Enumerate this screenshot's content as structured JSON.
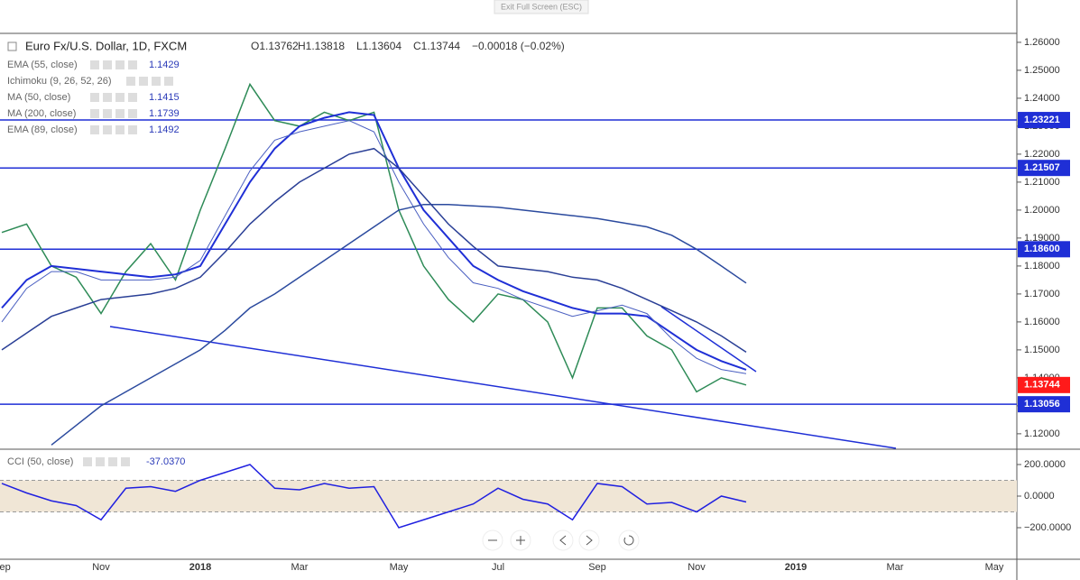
{
  "top_button": "Exit Full Screen (ESC)",
  "legend": {
    "symbol": "Euro Fx/U.S. Dollar, 1D, FXCM",
    "open": "O1.13762",
    "high": "H1.13818",
    "low": "L1.13604",
    "close": "C1.13744",
    "change": "−0.00018 (−0.02%)",
    "indicators": [
      {
        "name": "EMA (55, close)",
        "value": "1.1429"
      },
      {
        "name": "Ichimoku (9, 26, 52, 26)",
        "value": null
      },
      {
        "name": "MA (50, close)",
        "value": "1.1415"
      },
      {
        "name": "MA (200, close)",
        "value": "1.1739"
      },
      {
        "name": "EMA (89, close)",
        "value": "1.1492"
      }
    ]
  },
  "chart_data": [
    {
      "type": "line",
      "categories": [
        "Sep",
        null,
        null,
        null,
        "Nov",
        null,
        null,
        null,
        "2018",
        null,
        null,
        null,
        "Mar",
        null,
        null,
        null,
        "May",
        null,
        null,
        null,
        "Jul",
        null,
        null,
        null,
        "Sep",
        null,
        null,
        null,
        "Nov",
        null,
        null,
        null,
        "2019",
        null,
        null,
        null,
        "Mar",
        null,
        null,
        null,
        "May"
      ],
      "ylim": [
        1.1148,
        1.2632
      ],
      "yticks": [
        {
          "value": 1.12,
          "label": "1.12000"
        },
        {
          "value": 1.13,
          "label": "1.13000"
        },
        {
          "value": 1.14,
          "label": "1.14000"
        },
        {
          "value": 1.15,
          "label": "1.15000"
        },
        {
          "value": 1.16,
          "label": "1.16000"
        },
        {
          "value": 1.17,
          "label": "1.17000"
        },
        {
          "value": 1.18,
          "label": "1.18000"
        },
        {
          "value": 1.19,
          "label": "1.19000"
        },
        {
          "value": 1.2,
          "label": "1.20000"
        },
        {
          "value": 1.21,
          "label": "1.21000"
        },
        {
          "value": 1.22,
          "label": "1.22000"
        },
        {
          "value": 1.23,
          "label": "1.23000"
        },
        {
          "value": 1.24,
          "label": "1.24000"
        },
        {
          "value": 1.25,
          "label": "1.25000"
        },
        {
          "value": 1.26,
          "label": "1.26000"
        }
      ],
      "series": [
        {
          "name": "Euro Fx/U.S. Dollar",
          "color": "#2e8b57",
          "width": 1.5,
          "values": [
            1.192,
            1.195,
            1.18,
            1.176,
            1.163,
            1.178,
            1.188,
            1.175,
            1.2,
            1.222,
            1.245,
            1.232,
            1.23,
            1.235,
            1.232,
            1.235,
            1.2,
            1.18,
            1.168,
            1.16,
            1.17,
            1.168,
            1.16,
            1.14,
            1.165,
            1.165,
            1.155,
            1.15,
            1.135,
            1.14,
            1.13744,
            null,
            null,
            null,
            null,
            null,
            null,
            null,
            null,
            null,
            null
          ]
        },
        {
          "name": "EMA (55, close)",
          "color": "#1f2fd6",
          "width": 2,
          "values": [
            1.165,
            1.175,
            1.18,
            1.179,
            1.178,
            1.177,
            1.176,
            1.177,
            1.18,
            1.195,
            1.21,
            1.222,
            1.23,
            1.233,
            1.235,
            1.234,
            1.215,
            1.2,
            1.19,
            1.18,
            1.175,
            1.171,
            1.168,
            1.165,
            1.163,
            1.163,
            1.162,
            1.156,
            1.15,
            1.146,
            1.1429,
            null,
            null,
            null,
            null,
            null,
            null,
            null,
            null,
            null,
            null
          ]
        },
        {
          "name": "MA (50, close)",
          "color": "#4a5fc1",
          "width": 1,
          "values": [
            1.16,
            1.172,
            1.178,
            1.178,
            1.175,
            1.175,
            1.175,
            1.176,
            1.182,
            1.198,
            1.214,
            1.225,
            1.228,
            1.23,
            1.232,
            1.228,
            1.21,
            1.195,
            1.183,
            1.174,
            1.172,
            1.168,
            1.165,
            1.162,
            1.164,
            1.166,
            1.163,
            1.154,
            1.147,
            1.143,
            1.1415,
            null,
            null,
            null,
            null,
            null,
            null,
            null,
            null,
            null,
            null
          ]
        },
        {
          "name": "MA (200, close)",
          "color": "#2b4a9e",
          "width": 1.5,
          "values": [
            null,
            null,
            1.116,
            1.123,
            1.13,
            1.135,
            1.14,
            1.145,
            1.15,
            1.157,
            1.165,
            1.17,
            1.176,
            1.182,
            1.188,
            1.194,
            1.2,
            1.202,
            1.202,
            1.2015,
            1.201,
            1.2,
            1.199,
            1.198,
            1.197,
            1.1955,
            1.194,
            1.191,
            1.186,
            1.18,
            1.1739,
            null,
            null,
            null,
            null,
            null,
            null,
            null,
            null,
            null,
            null
          ]
        },
        {
          "name": "EMA (89, close)",
          "color": "#2a3f96",
          "width": 1.5,
          "values": [
            1.15,
            1.156,
            1.162,
            1.165,
            1.168,
            1.169,
            1.17,
            1.172,
            1.176,
            1.185,
            1.195,
            1.203,
            1.21,
            1.215,
            1.22,
            1.222,
            1.215,
            1.205,
            1.195,
            1.187,
            1.18,
            1.179,
            1.178,
            1.176,
            1.175,
            1.172,
            1.168,
            1.164,
            1.16,
            1.155,
            1.1492,
            null,
            null,
            null,
            null,
            null,
            null,
            null,
            null,
            null,
            null
          ]
        }
      ],
      "levels": [
        1.23221,
        1.21507,
        1.186,
        1.13056
      ],
      "level_labels": [
        "1.23221",
        "1.21507",
        "1.18600",
        "1.13056"
      ],
      "level_color": "#1f2fd6",
      "last": 1.13744,
      "last_color": "#ff1a1a"
    },
    {
      "type": "line",
      "title": "CCI (50, close)",
      "value_label": "-37.0370",
      "ylim": [
        -400,
        297
      ],
      "yticks": [
        {
          "value": 200,
          "label": "200.0000"
        },
        {
          "value": 0,
          "label": "0.0000"
        },
        {
          "value": -200,
          "label": "−200.0000"
        }
      ],
      "band": [
        -100,
        100
      ],
      "band_color": "#f0e6d6",
      "series": [
        {
          "name": "CCI",
          "color": "#2020e0",
          "width": 1.5,
          "values": [
            80,
            20,
            -30,
            -60,
            -150,
            50,
            60,
            30,
            100,
            150,
            200,
            50,
            40,
            80,
            50,
            60,
            -200,
            -150,
            -100,
            -50,
            50,
            -20,
            -50,
            -150,
            80,
            60,
            -50,
            -40,
            -100,
            0,
            -37.037,
            null,
            null,
            null,
            null,
            null,
            null,
            null,
            null,
            null,
            null
          ]
        }
      ]
    }
  ]
}
